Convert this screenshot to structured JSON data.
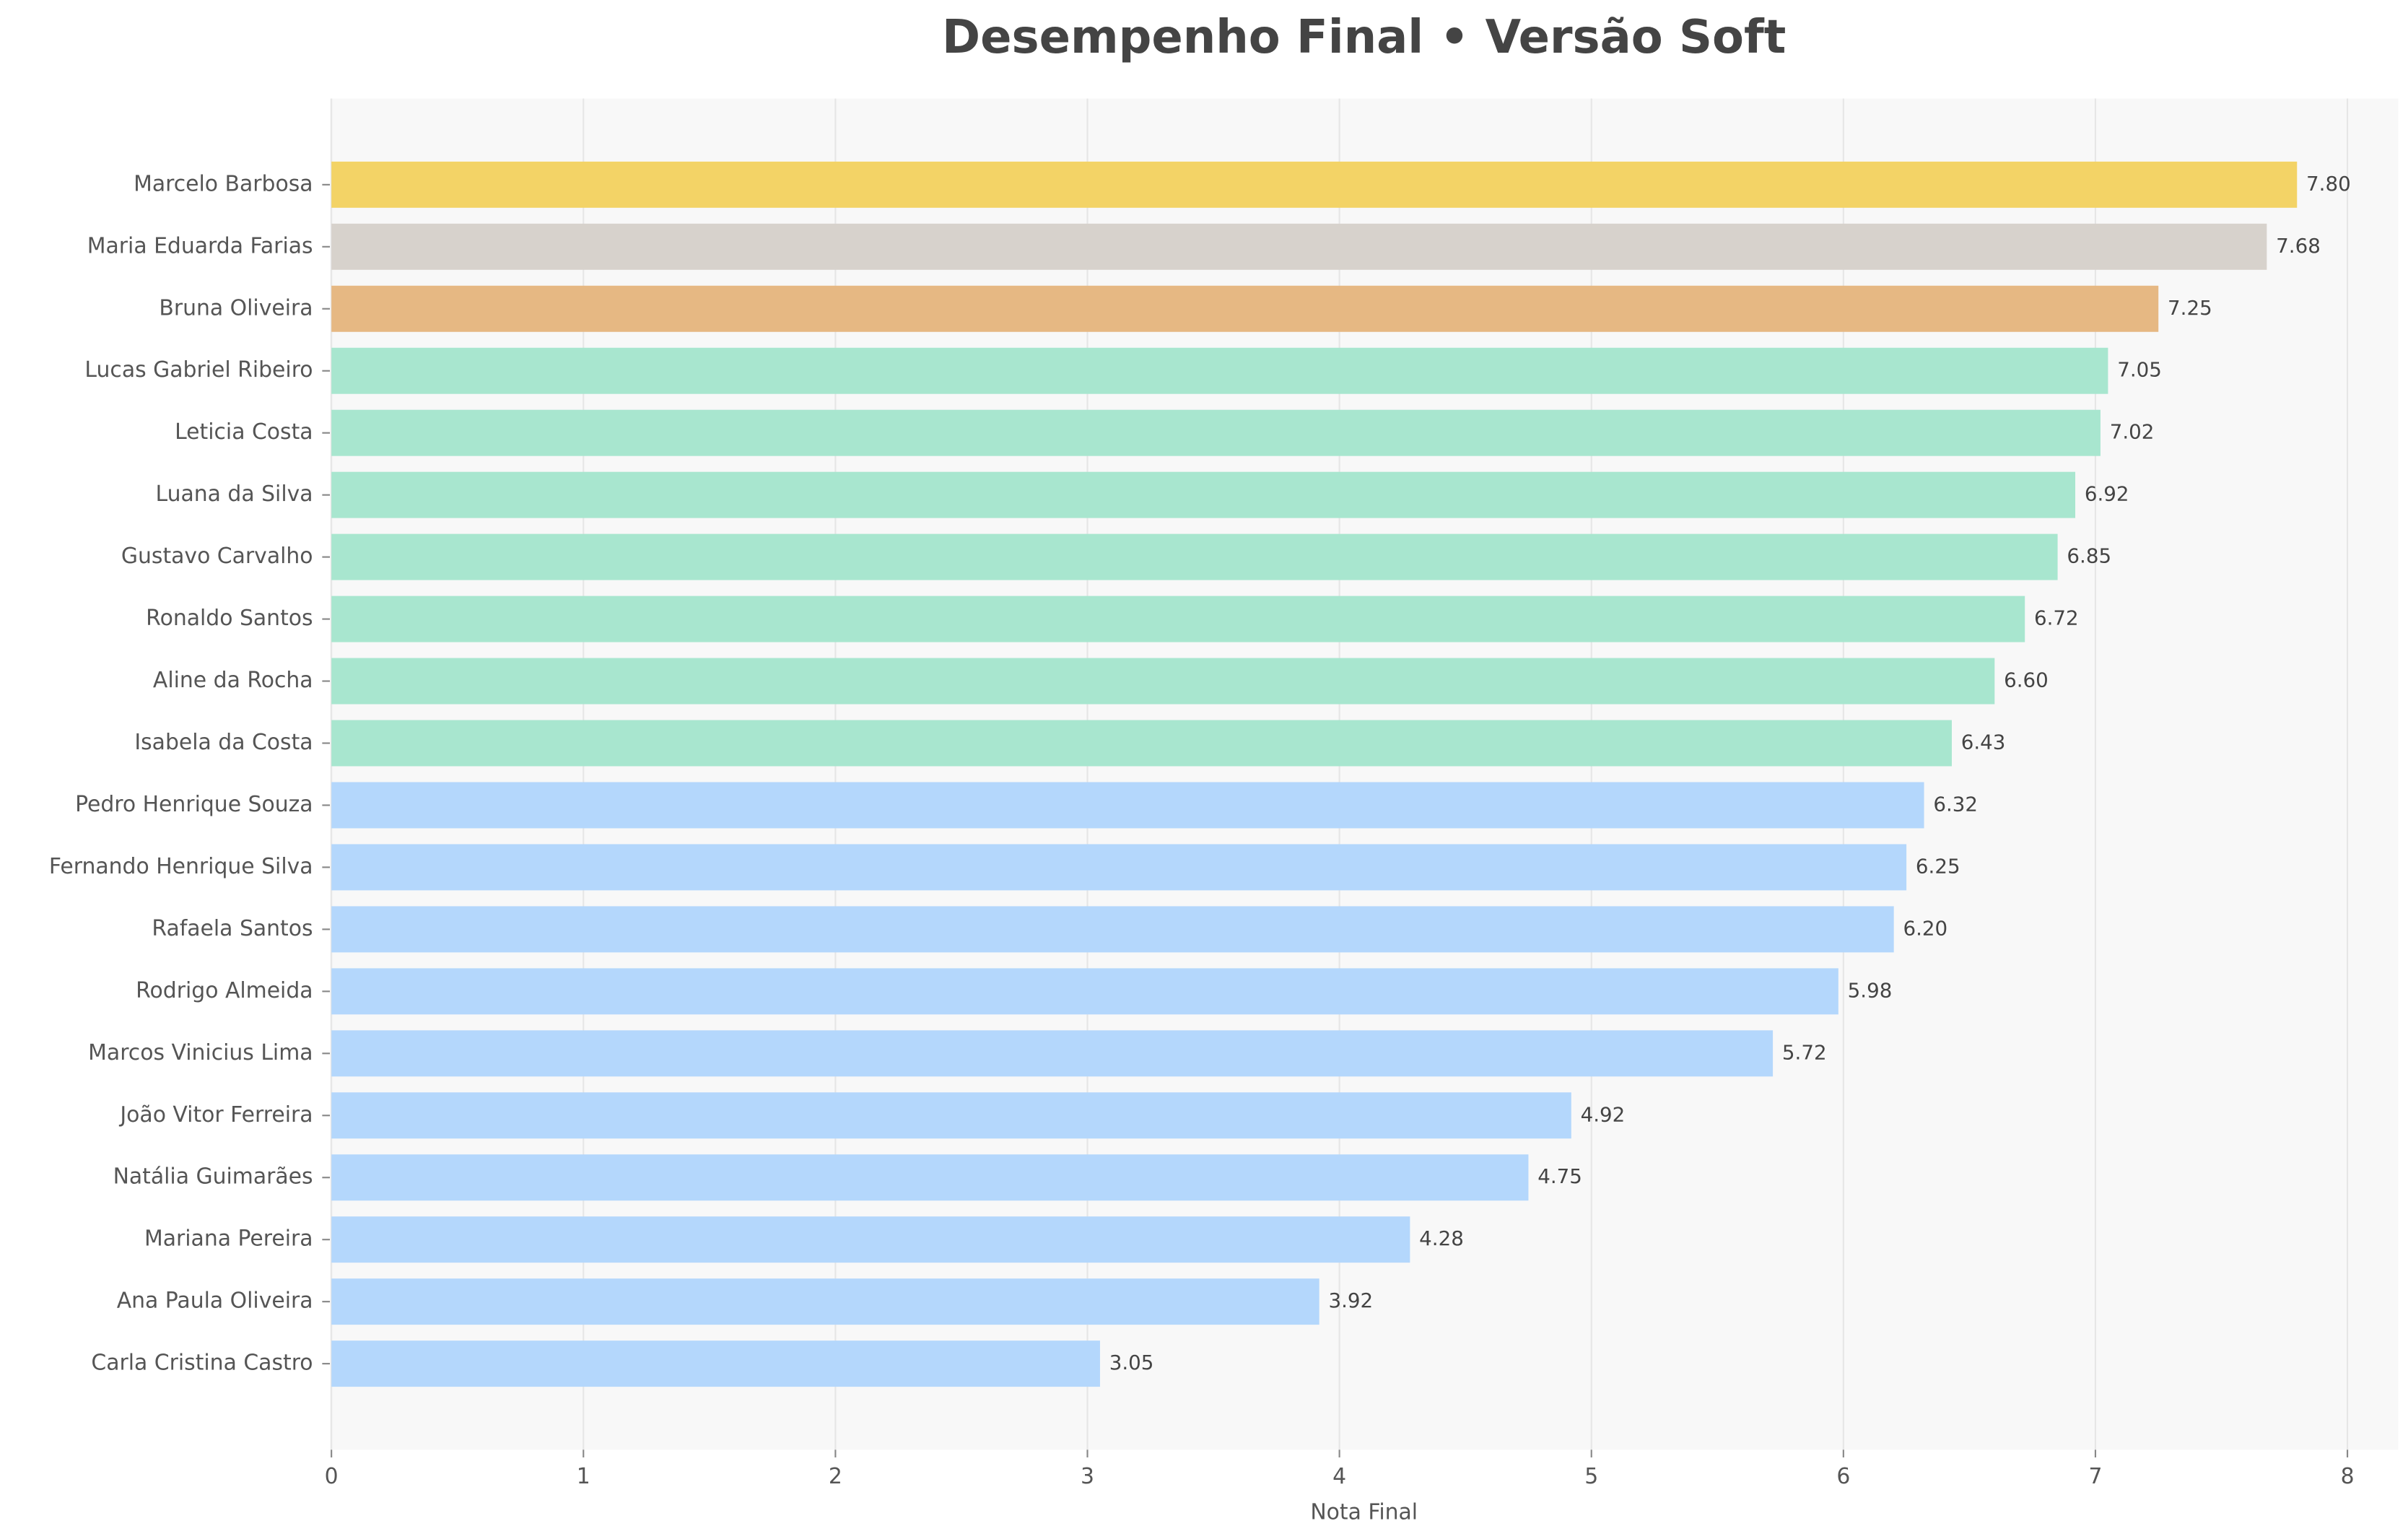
{
  "chart_data": {
    "type": "barh",
    "title": "Desempenho Final • Versão Soft",
    "xlabel": "Nota Final",
    "categories": [
      "Marcelo Barbosa",
      "Maria Eduarda Farias",
      "Bruna Oliveira",
      "Lucas Gabriel Ribeiro",
      "Leticia Costa",
      "Luana da Silva",
      "Gustavo Carvalho",
      "Ronaldo Santos",
      "Aline da Rocha",
      "Isabela da Costa",
      "Pedro Henrique Souza",
      "Fernando Henrique Silva",
      "Rafaela Santos",
      "Rodrigo Almeida",
      "Marcos Vinicius Lima",
      "João Vitor Ferreira",
      "Natália Guimarães",
      "Mariana Pereira",
      "Ana Paula Oliveira",
      "Carla Cristina Castro"
    ],
    "values": [
      7.8,
      7.68,
      7.25,
      7.05,
      7.02,
      6.92,
      6.85,
      6.72,
      6.6,
      6.43,
      6.32,
      6.25,
      6.2,
      5.98,
      5.72,
      4.92,
      4.75,
      4.28,
      3.92,
      3.05
    ],
    "value_labels": [
      "7.80",
      "7.68",
      "7.25",
      "7.05",
      "7.02",
      "6.92",
      "6.85",
      "6.72",
      "6.60",
      "6.43",
      "6.32",
      "6.25",
      "6.20",
      "5.98",
      "5.72",
      "4.92",
      "4.75",
      "4.28",
      "3.92",
      "3.05"
    ],
    "colors": [
      "#f3d366",
      "#d7d2cc",
      "#e6b883",
      "#a8e6cf",
      "#a8e6cf",
      "#a8e6cf",
      "#a8e6cf",
      "#a8e6cf",
      "#a8e6cf",
      "#a8e6cf",
      "#b4d7fc",
      "#b4d7fc",
      "#b4d7fc",
      "#b4d7fc",
      "#b4d7fc",
      "#b4d7fc",
      "#b4d7fc",
      "#b4d7fc",
      "#b4d7fc",
      "#b4d7fc"
    ],
    "xlim": [
      0,
      8.2
    ],
    "xticks": [
      0,
      1,
      2,
      3,
      4,
      5,
      6,
      7,
      8
    ],
    "grid": true
  }
}
